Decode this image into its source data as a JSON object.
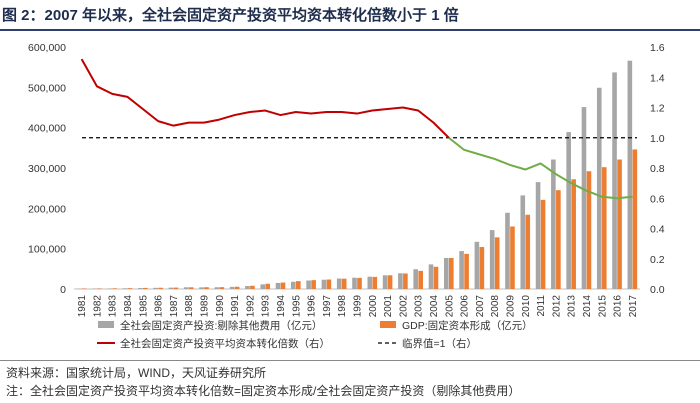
{
  "title": "图 2：2007 年以来，全社会固定资产投资平均资本转化倍数小于 1 倍",
  "source": "资料来源：国家统计局，WIND，天风证券研究所",
  "note": "注：全社会固定资产投资平均资本转化倍数=固定资本形成/全社会固定资产投资（剔除其他费用）",
  "colors": {
    "gray_bar": "#a6a6a6",
    "orange_bar": "#ed7d31",
    "red_line": "#c00000",
    "green_line": "#70ad47",
    "dashed": "#000000",
    "title": "#1f2d4d"
  },
  "chart_data": {
    "type": "bar",
    "x": [
      "1981",
      "1982",
      "1983",
      "1984",
      "1985",
      "1986",
      "1987",
      "1988",
      "1989",
      "1990",
      "1991",
      "1992",
      "1993",
      "1994",
      "1995",
      "1996",
      "1997",
      "1998",
      "1999",
      "2000",
      "2001",
      "2002",
      "2003",
      "2004",
      "2005",
      "2006",
      "2007",
      "2008",
      "2009",
      "2010",
      "2011",
      "2012",
      "2013",
      "2014",
      "2015",
      "2016",
      "2017"
    ],
    "y_left_ticks": [
      "0",
      "100,000",
      "200,000",
      "300,000",
      "400,000",
      "500,000",
      "600,000"
    ],
    "y_right_ticks": [
      "0.0",
      "0.2",
      "0.4",
      "0.6",
      "0.8",
      "1.0",
      "1.2",
      "1.4",
      "1.6"
    ],
    "ylim_left": [
      0,
      600000
    ],
    "ylim_right": [
      0,
      1.6
    ],
    "series": [
      {
        "name": "全社会固定资产投资:剔除其他费用（亿元）",
        "kind": "bar",
        "axis": "left",
        "values": [
          900,
          1200,
          1400,
          1800,
          2500,
          2900,
          3400,
          4300,
          4100,
          4300,
          5300,
          7500,
          11500,
          15000,
          18000,
          21000,
          23000,
          26000,
          28000,
          30500,
          34000,
          39000,
          49000,
          61000,
          77000,
          94000,
          117000,
          146000,
          189000,
          232000,
          265000,
          321000,
          389000,
          451000,
          499000,
          537000,
          566000
        ]
      },
      {
        "name": "GDP:固定资本形成（亿元）",
        "kind": "bar",
        "axis": "left",
        "values": [
          1400,
          1500,
          1700,
          2100,
          2700,
          3100,
          3500,
          4200,
          4500,
          4600,
          5600,
          8000,
          13000,
          16000,
          19500,
          22000,
          23500,
          25500,
          27500,
          30000,
          34000,
          38500,
          45000,
          55000,
          77000,
          87000,
          104000,
          128000,
          155000,
          184000,
          221000,
          245000,
          272000,
          292000,
          302000,
          321000,
          346000
        ]
      },
      {
        "name": "全社会固定资产投资平均资本转化倍数（右）",
        "kind": "line",
        "axis": "right",
        "values": [
          1.52,
          1.34,
          1.29,
          1.27,
          1.19,
          1.11,
          1.08,
          1.1,
          1.1,
          1.12,
          1.15,
          1.17,
          1.18,
          1.15,
          1.17,
          1.16,
          1.17,
          1.17,
          1.16,
          1.18,
          1.19,
          1.2,
          1.18,
          1.1,
          1.0,
          0.92,
          0.89,
          0.86,
          0.82,
          0.79,
          0.83,
          0.76,
          0.7,
          0.65,
          0.61,
          0.6,
          0.61
        ]
      },
      {
        "name": "临界值=1（右）",
        "kind": "hline",
        "axis": "right",
        "value": 1.0
      }
    ],
    "legend": [
      "全社会固定资产投资:剔除其他费用（亿元）",
      "GDP:固定资本形成（亿元）",
      "全社会固定资产投资平均资本转化倍数（右）",
      "临界值=1（右）"
    ],
    "legend_position": "bottom",
    "grid": false
  }
}
